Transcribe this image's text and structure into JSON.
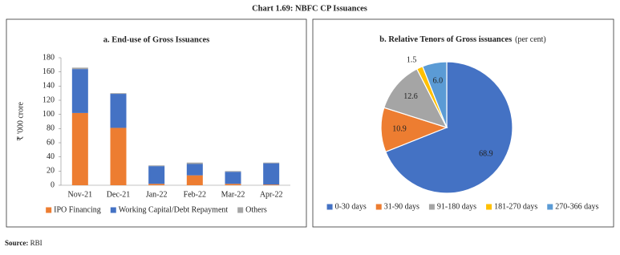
{
  "title": "Chart 1.69: NBFC CP Issuances",
  "source_label": "Source:",
  "source": "RBI",
  "chart_data": [
    {
      "type": "bar",
      "stacked": true,
      "title": "a. End-use of Gross Issuances",
      "ylabel": "₹ '000 crore",
      "categories": [
        "Nov-21",
        "Dec-21",
        "Jan-22",
        "Feb-22",
        "Mar-22",
        "Apr-22"
      ],
      "series": [
        {
          "name": "IPO Financing",
          "color": "#ED7D31",
          "values": [
            102,
            81,
            2,
            14,
            2,
            1
          ]
        },
        {
          "name": "Working Capital/Debt Repayment",
          "color": "#4472C4",
          "values": [
            62,
            48,
            25,
            16,
            17,
            30
          ]
        },
        {
          "name": "Others",
          "color": "#A5A5A5",
          "values": [
            2,
            1,
            1,
            2,
            1,
            1
          ]
        }
      ],
      "ylim": [
        0,
        180
      ],
      "yticks": [
        0,
        20,
        40,
        60,
        80,
        100,
        120,
        140,
        160,
        180
      ],
      "legend": "bottom"
    },
    {
      "type": "pie",
      "title": "b. Relative Tenors of Gross issuances",
      "subtitle": "(per cent)",
      "categories": [
        "0-30 days",
        "31-90 days",
        "91-180 days",
        "181-270 days",
        "270-366 days"
      ],
      "values": [
        68.9,
        10.9,
        12.6,
        1.5,
        6.0
      ],
      "value_labels": [
        "68.9",
        "10.9",
        "12.6",
        "1.5",
        "6.0"
      ],
      "colors": [
        "#4472C4",
        "#ED7D31",
        "#A5A5A5",
        "#FFC000",
        "#5B9BD5"
      ],
      "legend": "bottom"
    }
  ]
}
